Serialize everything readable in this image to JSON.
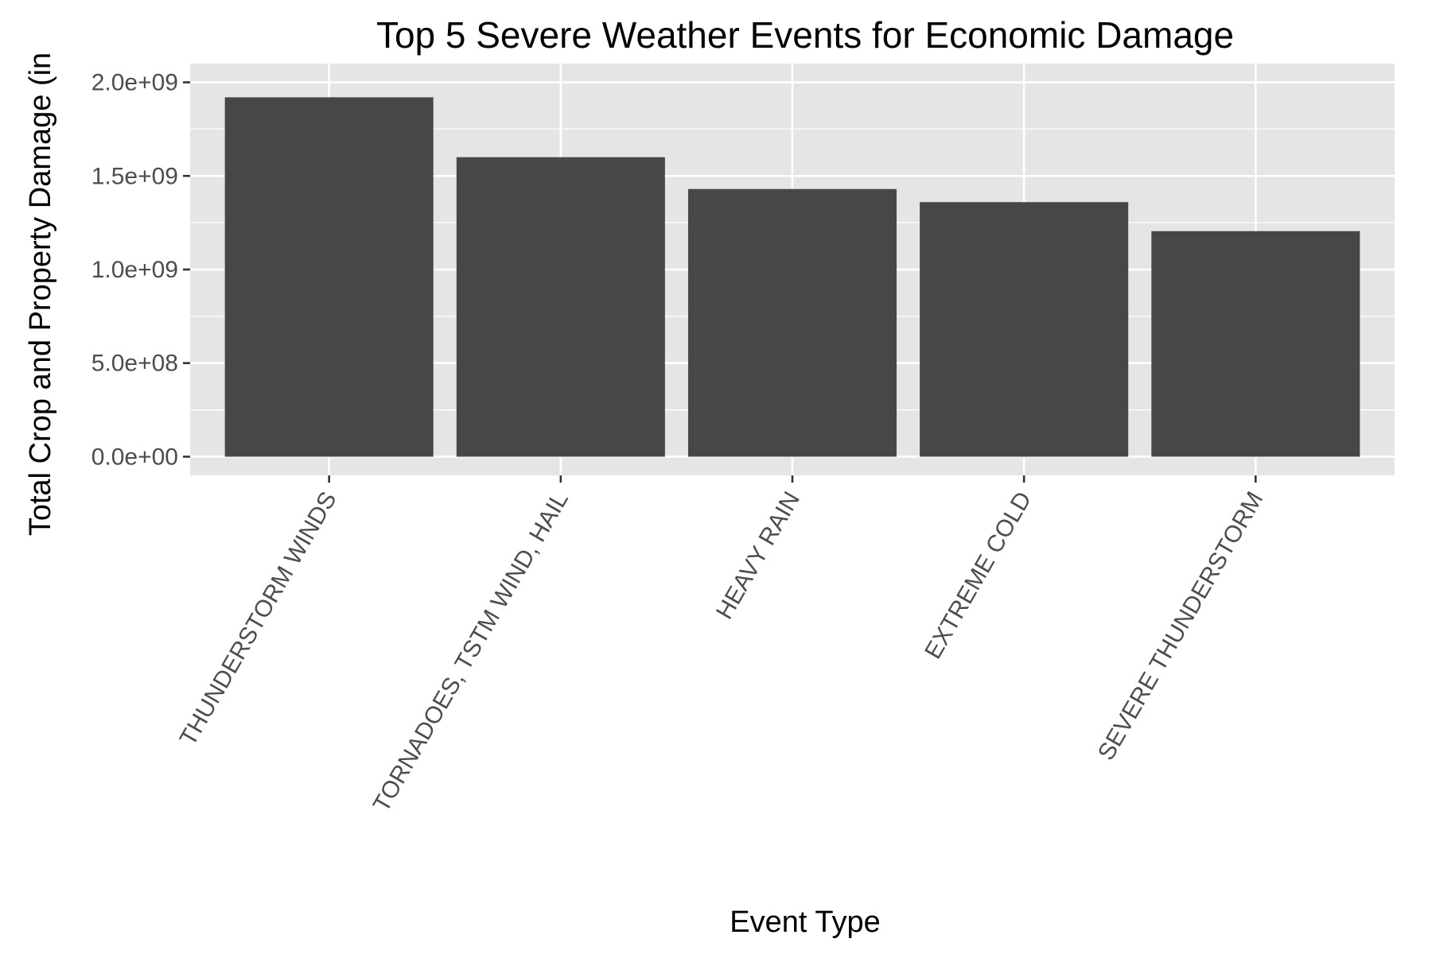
{
  "chart_data": {
    "type": "bar",
    "title": "Top 5 Severe Weather Events for Economic Damage",
    "xlabel": "Event Type",
    "ylabel": "Total Crop and Property Damage (in",
    "categories": [
      "THUNDERSTORM WINDS",
      "TORNADOES, TSTM WIND, HAIL",
      "HEAVY RAIN",
      "EXTREME COLD",
      "SEVERE THUNDERSTORM"
    ],
    "values": [
      1920000000,
      1600000000,
      1430000000,
      1360000000,
      1205000000
    ],
    "ylim": [
      -100000000,
      2100000000
    ],
    "yticks": [
      0,
      500000000,
      1000000000,
      1500000000,
      2000000000
    ],
    "ytick_labels": [
      "0.0e+00",
      "5.0e+08",
      "1.0e+09",
      "1.5e+09",
      "2.0e+09"
    ],
    "grid": true,
    "legend": "none",
    "colors": {
      "bar": "#474747",
      "panel": "#e5e5e5",
      "gridline": "#ffffff",
      "tick": "#333333"
    }
  }
}
